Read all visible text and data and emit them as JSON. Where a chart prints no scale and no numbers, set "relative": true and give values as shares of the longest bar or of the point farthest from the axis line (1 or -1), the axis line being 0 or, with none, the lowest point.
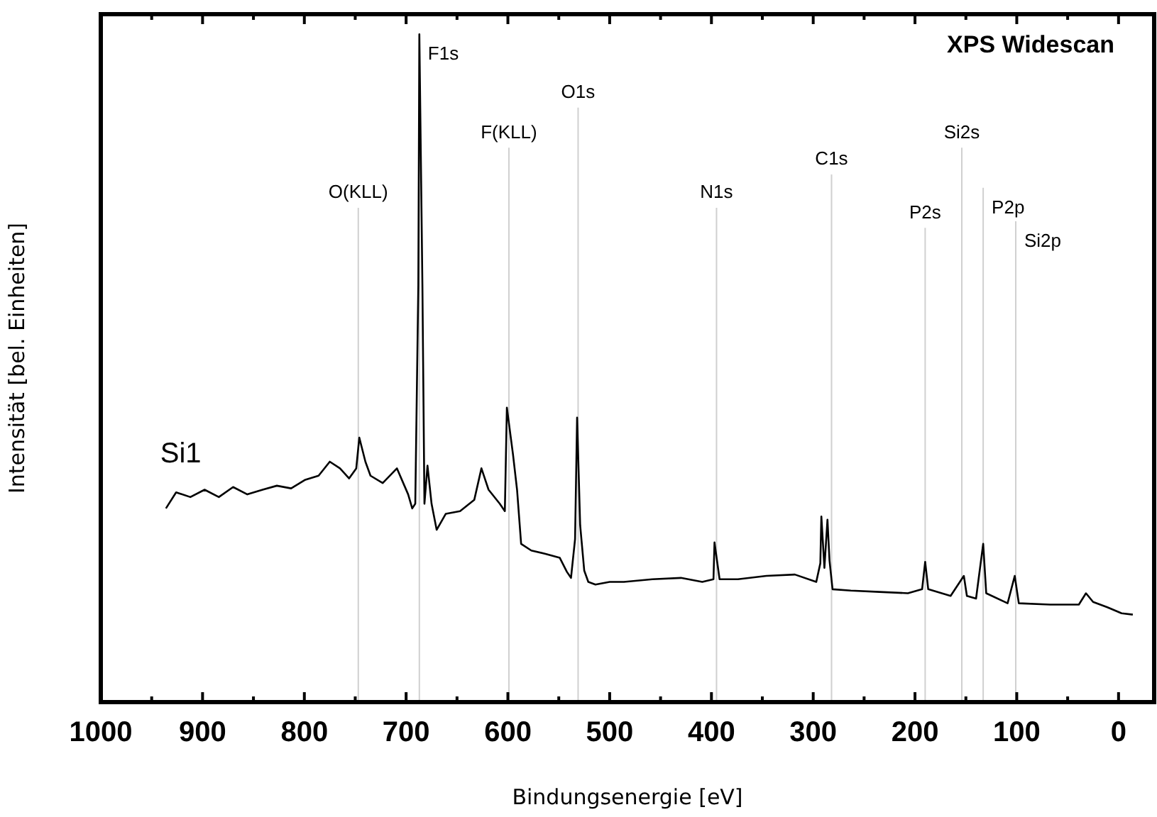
{
  "chart_data": {
    "type": "line",
    "title": "XPS Widescan",
    "xlabel": "Bindungsenergie [eV]",
    "ylabel": "Intensität [bel. Einheiten]",
    "relative": true,
    "xlim": [
      1000,
      -35
    ],
    "xticks": [
      1000,
      {
        "value": 950,
        "label": null
      },
      900,
      {
        "value": 850,
        "label": null
      },
      800,
      {
        "value": 750,
        "label": null
      },
      700,
      {
        "value": 650,
        "label": null
      },
      600,
      {
        "value": 550,
        "label": null
      },
      500,
      {
        "value": 450,
        "label": null
      },
      400,
      {
        "value": 350,
        "label": null
      },
      300,
      {
        "value": 250,
        "label": null
      },
      200,
      {
        "value": 150,
        "label": null
      },
      100,
      {
        "value": 50,
        "label": null
      },
      0
    ],
    "legend": false,
    "grid": false,
    "marker": "none",
    "line_style": "solid",
    "series": [
      {
        "name": "Si1",
        "color": "#000000",
        "x": [
          936,
          926,
          912,
          898,
          884,
          870,
          856,
          841,
          827,
          813,
          799,
          786,
          775,
          765,
          756,
          749,
          746,
          740,
          735,
          723,
          709,
          698,
          694,
          691,
          688,
          687,
          684,
          682,
          679,
          675,
          670,
          661,
          647,
          633,
          626,
          619,
          608,
          603,
          601,
          595,
          591,
          587,
          577,
          563,
          549,
          542,
          538,
          534,
          532,
          529,
          525,
          521,
          514,
          500,
          486,
          458,
          430,
          409,
          398,
          397,
          392,
          374,
          346,
          318,
          297,
          293,
          292,
          289,
          286,
          284,
          281,
          263,
          235,
          207,
          193,
          190,
          187,
          165,
          152,
          149,
          140,
          133,
          130,
          109,
          102,
          98,
          67,
          39,
          32,
          25,
          11,
          -3,
          -14
        ],
        "values": [
          0.29,
          0.314,
          0.307,
          0.318,
          0.307,
          0.322,
          0.311,
          0.318,
          0.324,
          0.32,
          0.333,
          0.339,
          0.36,
          0.35,
          0.335,
          0.35,
          0.396,
          0.36,
          0.339,
          0.328,
          0.35,
          0.311,
          0.29,
          0.297,
          0.625,
          1.0,
          0.625,
          0.297,
          0.354,
          0.297,
          0.258,
          0.282,
          0.286,
          0.303,
          0.35,
          0.318,
          0.297,
          0.286,
          0.441,
          0.371,
          0.318,
          0.237,
          0.227,
          0.222,
          0.216,
          0.195,
          0.186,
          0.244,
          0.426,
          0.265,
          0.197,
          0.18,
          0.176,
          0.18,
          0.18,
          0.184,
          0.186,
          0.18,
          0.184,
          0.239,
          0.184,
          0.184,
          0.189,
          0.191,
          0.18,
          0.208,
          0.278,
          0.201,
          0.273,
          0.212,
          0.169,
          0.167,
          0.165,
          0.163,
          0.169,
          0.21,
          0.169,
          0.159,
          0.189,
          0.159,
          0.155,
          0.237,
          0.163,
          0.148,
          0.189,
          0.148,
          0.146,
          0.146,
          0.163,
          0.15,
          0.142,
          0.133,
          0.131
        ]
      }
    ],
    "ref_lines": [
      {
        "axis": "x",
        "value": 747,
        "label": "O(KLL)",
        "color": "#d0d0d0"
      },
      {
        "axis": "x",
        "value": 687,
        "label": "F1s",
        "color": "#d0d0d0"
      },
      {
        "axis": "x",
        "value": 599,
        "label": "F(KLL)",
        "color": "#d0d0d0"
      },
      {
        "axis": "x",
        "value": 531,
        "label": "O1s",
        "color": "#d0d0d0"
      },
      {
        "axis": "x",
        "value": 395,
        "label": "N1s",
        "color": "#d0d0d0"
      },
      {
        "axis": "x",
        "value": 282,
        "label": "C1s",
        "color": "#d0d0d0"
      },
      {
        "axis": "x",
        "value": 190,
        "label": "P2s",
        "color": "#d0d0d0"
      },
      {
        "axis": "x",
        "value": 154,
        "label": "Si2s",
        "color": "#d0d0d0"
      },
      {
        "axis": "x",
        "value": 133,
        "label": "P2p",
        "color": "#d0d0d0"
      },
      {
        "axis": "x",
        "value": 101,
        "label": "Si2p",
        "color": "#d0d0d0"
      }
    ]
  }
}
